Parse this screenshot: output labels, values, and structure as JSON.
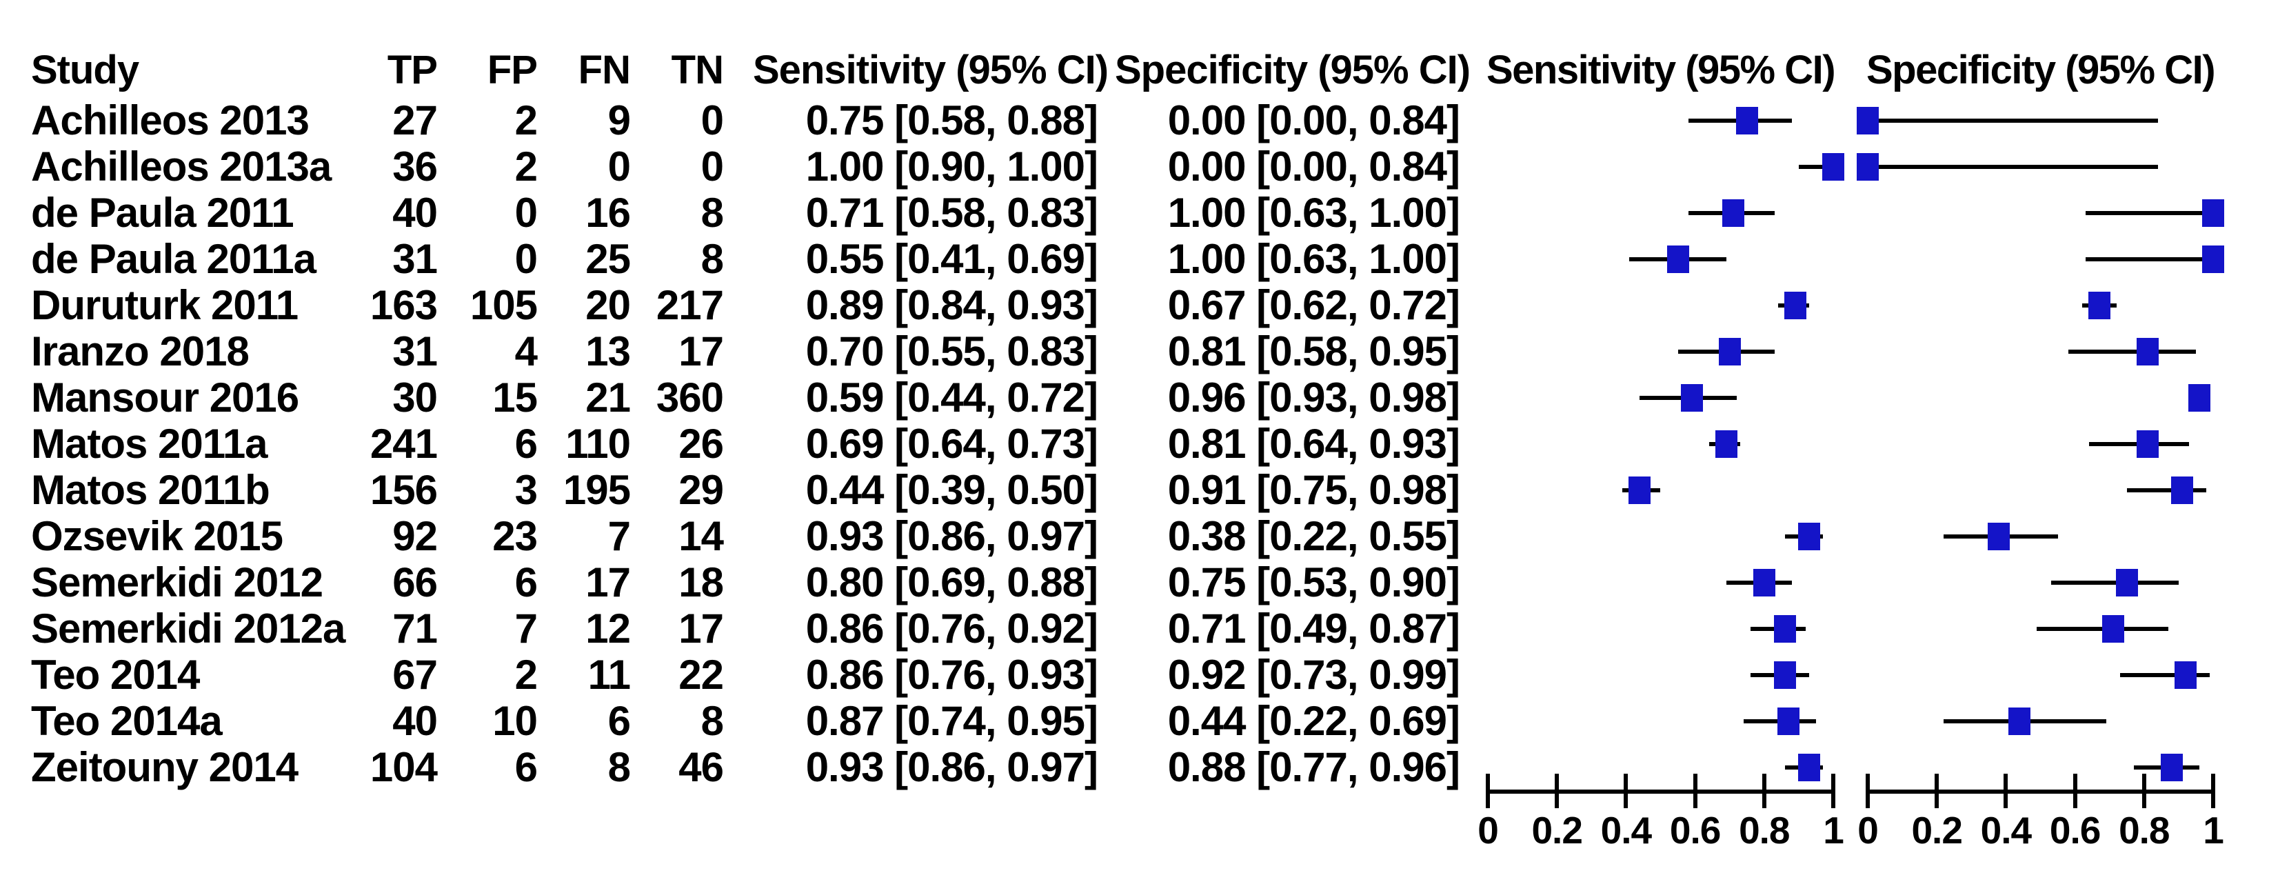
{
  "table": {
    "columns": {
      "study": "Study",
      "tp": "TP",
      "fp": "FP",
      "fn": "FN",
      "tn": "TN",
      "sensitivity": "Sensitivity (95% CI)",
      "specificity": "Specificity (95% CI)"
    },
    "rows": [
      {
        "study": "Achilleos 2013",
        "tp": 27,
        "fp": 2,
        "fn": 9,
        "tn": 0,
        "sens_text": "0.75 [0.58, 0.88]",
        "spec_text": "0.00 [0.00, 0.84]",
        "sens": 0.75,
        "sens_lo": 0.58,
        "sens_hi": 0.88,
        "spec": 0.0,
        "spec_lo": 0.0,
        "spec_hi": 0.84
      },
      {
        "study": "Achilleos 2013a",
        "tp": 36,
        "fp": 2,
        "fn": 0,
        "tn": 0,
        "sens_text": "1.00 [0.90, 1.00]",
        "spec_text": "0.00 [0.00, 0.84]",
        "sens": 1.0,
        "sens_lo": 0.9,
        "sens_hi": 1.0,
        "spec": 0.0,
        "spec_lo": 0.0,
        "spec_hi": 0.84
      },
      {
        "study": "de Paula 2011",
        "tp": 40,
        "fp": 0,
        "fn": 16,
        "tn": 8,
        "sens_text": "0.71 [0.58, 0.83]",
        "spec_text": "1.00 [0.63, 1.00]",
        "sens": 0.71,
        "sens_lo": 0.58,
        "sens_hi": 0.83,
        "spec": 1.0,
        "spec_lo": 0.63,
        "spec_hi": 1.0
      },
      {
        "study": "de Paula 2011a",
        "tp": 31,
        "fp": 0,
        "fn": 25,
        "tn": 8,
        "sens_text": "0.55 [0.41, 0.69]",
        "spec_text": "1.00 [0.63, 1.00]",
        "sens": 0.55,
        "sens_lo": 0.41,
        "sens_hi": 0.69,
        "spec": 1.0,
        "spec_lo": 0.63,
        "spec_hi": 1.0
      },
      {
        "study": "Duruturk 2011",
        "tp": 163,
        "fp": 105,
        "fn": 20,
        "tn": 217,
        "sens_text": "0.89 [0.84, 0.93]",
        "spec_text": "0.67 [0.62, 0.72]",
        "sens": 0.89,
        "sens_lo": 0.84,
        "sens_hi": 0.93,
        "spec": 0.67,
        "spec_lo": 0.62,
        "spec_hi": 0.72
      },
      {
        "study": "Iranzo 2018",
        "tp": 31,
        "fp": 4,
        "fn": 13,
        "tn": 17,
        "sens_text": "0.70 [0.55, 0.83]",
        "spec_text": "0.81 [0.58, 0.95]",
        "sens": 0.7,
        "sens_lo": 0.55,
        "sens_hi": 0.83,
        "spec": 0.81,
        "spec_lo": 0.58,
        "spec_hi": 0.95
      },
      {
        "study": "Mansour 2016",
        "tp": 30,
        "fp": 15,
        "fn": 21,
        "tn": 360,
        "sens_text": "0.59 [0.44, 0.72]",
        "spec_text": "0.96 [0.93, 0.98]",
        "sens": 0.59,
        "sens_lo": 0.44,
        "sens_hi": 0.72,
        "spec": 0.96,
        "spec_lo": 0.93,
        "spec_hi": 0.98
      },
      {
        "study": "Matos 2011a",
        "tp": 241,
        "fp": 6,
        "fn": 110,
        "tn": 26,
        "sens_text": "0.69 [0.64, 0.73]",
        "spec_text": "0.81 [0.64, 0.93]",
        "sens": 0.69,
        "sens_lo": 0.64,
        "sens_hi": 0.73,
        "spec": 0.81,
        "spec_lo": 0.64,
        "spec_hi": 0.93
      },
      {
        "study": "Matos 2011b",
        "tp": 156,
        "fp": 3,
        "fn": 195,
        "tn": 29,
        "sens_text": "0.44 [0.39, 0.50]",
        "spec_text": "0.91 [0.75, 0.98]",
        "sens": 0.44,
        "sens_lo": 0.39,
        "sens_hi": 0.5,
        "spec": 0.91,
        "spec_lo": 0.75,
        "spec_hi": 0.98
      },
      {
        "study": "Ozsevik 2015",
        "tp": 92,
        "fp": 23,
        "fn": 7,
        "tn": 14,
        "sens_text": "0.93 [0.86, 0.97]",
        "spec_text": "0.38 [0.22, 0.55]",
        "sens": 0.93,
        "sens_lo": 0.86,
        "sens_hi": 0.97,
        "spec": 0.38,
        "spec_lo": 0.22,
        "spec_hi": 0.55
      },
      {
        "study": "Semerkidi 2012",
        "tp": 66,
        "fp": 6,
        "fn": 17,
        "tn": 18,
        "sens_text": "0.80 [0.69, 0.88]",
        "spec_text": "0.75 [0.53, 0.90]",
        "sens": 0.8,
        "sens_lo": 0.69,
        "sens_hi": 0.88,
        "spec": 0.75,
        "spec_lo": 0.53,
        "spec_hi": 0.9
      },
      {
        "study": "Semerkidi 2012a",
        "tp": 71,
        "fp": 7,
        "fn": 12,
        "tn": 17,
        "sens_text": "0.86 [0.76, 0.92]",
        "spec_text": "0.71 [0.49, 0.87]",
        "sens": 0.86,
        "sens_lo": 0.76,
        "sens_hi": 0.92,
        "spec": 0.71,
        "spec_lo": 0.49,
        "spec_hi": 0.87
      },
      {
        "study": "Teo 2014",
        "tp": 67,
        "fp": 2,
        "fn": 11,
        "tn": 22,
        "sens_text": "0.86 [0.76, 0.93]",
        "spec_text": "0.92 [0.73, 0.99]",
        "sens": 0.86,
        "sens_lo": 0.76,
        "sens_hi": 0.93,
        "spec": 0.92,
        "spec_lo": 0.73,
        "spec_hi": 0.99
      },
      {
        "study": "Teo 2014a",
        "tp": 40,
        "fp": 10,
        "fn": 6,
        "tn": 8,
        "sens_text": "0.87 [0.74, 0.95]",
        "spec_text": "0.44 [0.22, 0.69]",
        "sens": 0.87,
        "sens_lo": 0.74,
        "sens_hi": 0.95,
        "spec": 0.44,
        "spec_lo": 0.22,
        "spec_hi": 0.69
      },
      {
        "study": "Zeitouny 2014",
        "tp": 104,
        "fp": 6,
        "fn": 8,
        "tn": 46,
        "sens_text": "0.93 [0.86, 0.97]",
        "spec_text": "0.88 [0.77, 0.96]",
        "sens": 0.93,
        "sens_lo": 0.86,
        "sens_hi": 0.97,
        "spec": 0.88,
        "spec_lo": 0.77,
        "spec_hi": 0.96
      }
    ]
  },
  "plots": {
    "sensitivity_header": "Sensitivity (95% CI)",
    "specificity_header": "Specificity (95% CI)",
    "axis_tick_labels": [
      "0",
      "0.2",
      "0.4",
      "0.6",
      "0.8",
      "1"
    ],
    "marker_color": "#1414c8",
    "line_color": "#000000"
  },
  "chart_data": {
    "type": "scatter",
    "variant": "paired-forest-plot",
    "title": "",
    "categories": [
      "Achilleos 2013",
      "Achilleos 2013a",
      "de Paula 2011",
      "de Paula 2011a",
      "Duruturk 2011",
      "Iranzo 2018",
      "Mansour 2016",
      "Matos 2011a",
      "Matos 2011b",
      "Ozsevik 2015",
      "Semerkidi 2012",
      "Semerkidi 2012a",
      "Teo 2014",
      "Teo 2014a",
      "Zeitouny 2014"
    ],
    "series": [
      {
        "name": "Sensitivity (95% CI)",
        "points": [
          {
            "est": 0.75,
            "lo": 0.58,
            "hi": 0.88
          },
          {
            "est": 1.0,
            "lo": 0.9,
            "hi": 1.0
          },
          {
            "est": 0.71,
            "lo": 0.58,
            "hi": 0.83
          },
          {
            "est": 0.55,
            "lo": 0.41,
            "hi": 0.69
          },
          {
            "est": 0.89,
            "lo": 0.84,
            "hi": 0.93
          },
          {
            "est": 0.7,
            "lo": 0.55,
            "hi": 0.83
          },
          {
            "est": 0.59,
            "lo": 0.44,
            "hi": 0.72
          },
          {
            "est": 0.69,
            "lo": 0.64,
            "hi": 0.73
          },
          {
            "est": 0.44,
            "lo": 0.39,
            "hi": 0.5
          },
          {
            "est": 0.93,
            "lo": 0.86,
            "hi": 0.97
          },
          {
            "est": 0.8,
            "lo": 0.69,
            "hi": 0.88
          },
          {
            "est": 0.86,
            "lo": 0.76,
            "hi": 0.92
          },
          {
            "est": 0.86,
            "lo": 0.76,
            "hi": 0.93
          },
          {
            "est": 0.87,
            "lo": 0.74,
            "hi": 0.95
          },
          {
            "est": 0.93,
            "lo": 0.86,
            "hi": 0.97
          }
        ]
      },
      {
        "name": "Specificity (95% CI)",
        "points": [
          {
            "est": 0.0,
            "lo": 0.0,
            "hi": 0.84
          },
          {
            "est": 0.0,
            "lo": 0.0,
            "hi": 0.84
          },
          {
            "est": 1.0,
            "lo": 0.63,
            "hi": 1.0
          },
          {
            "est": 1.0,
            "lo": 0.63,
            "hi": 1.0
          },
          {
            "est": 0.67,
            "lo": 0.62,
            "hi": 0.72
          },
          {
            "est": 0.81,
            "lo": 0.58,
            "hi": 0.95
          },
          {
            "est": 0.96,
            "lo": 0.93,
            "hi": 0.98
          },
          {
            "est": 0.81,
            "lo": 0.64,
            "hi": 0.93
          },
          {
            "est": 0.91,
            "lo": 0.75,
            "hi": 0.98
          },
          {
            "est": 0.38,
            "lo": 0.22,
            "hi": 0.55
          },
          {
            "est": 0.75,
            "lo": 0.53,
            "hi": 0.9
          },
          {
            "est": 0.71,
            "lo": 0.49,
            "hi": 0.87
          },
          {
            "est": 0.92,
            "lo": 0.73,
            "hi": 0.99
          },
          {
            "est": 0.44,
            "lo": 0.22,
            "hi": 0.69
          },
          {
            "est": 0.88,
            "lo": 0.77,
            "hi": 0.96
          }
        ]
      }
    ],
    "xlim": [
      0,
      1
    ],
    "x_ticks": [
      0,
      0.2,
      0.4,
      0.6,
      0.8,
      1
    ],
    "grid": false,
    "legend_position": "panel-headers-top",
    "marker": "filled-square",
    "marker_color": "#1414c8",
    "ci_line_color": "#000000"
  }
}
